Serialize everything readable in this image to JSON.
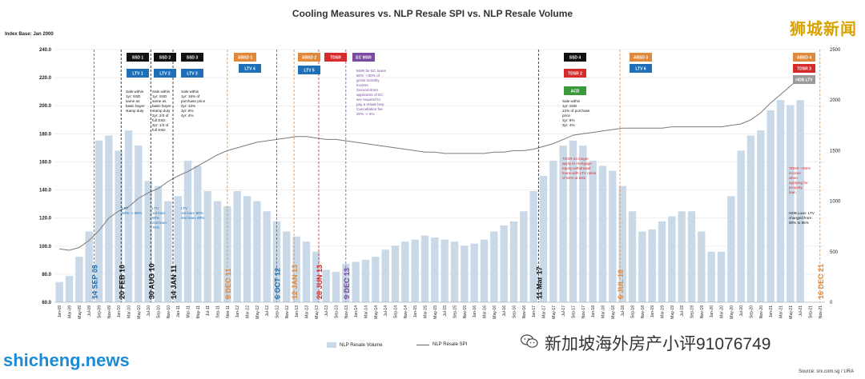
{
  "header": {
    "title": "Cooling Measures vs. NLP Resale SPI vs. NLP Resale Volume",
    "index_base": "Index Base: Jan 2000",
    "watermark_top_right": "狮城新闻",
    "watermark_bottom_left": "shicheng.news",
    "watermark_bottom_right": "新加坡海外房产小评91076749",
    "source": "Source: srx.com.sg / URA"
  },
  "legend": {
    "volume_label": "NLP Resale Volume",
    "spi_label": "NLP Resale SPI"
  },
  "colors": {
    "bar": "#c9d9e8",
    "line": "#7a7a7a",
    "black_box": "#111111",
    "blue_box": "#1f6fb8",
    "orange_box": "#e0893a",
    "red_box": "#d62b2b",
    "purple_box": "#7a4aa0",
    "green_box": "#3a9a3a",
    "gray_box": "#9a9a9a"
  },
  "chart_data": {
    "type": "bar+line",
    "title": "Cooling Measures vs. NLP Resale SPI vs. NLP Resale Volume",
    "left_axis": {
      "label": "",
      "ylim": [
        60,
        240
      ],
      "ticks": [
        "240.0",
        "220.0",
        "200.0",
        "180.0",
        "160.0",
        "140.0",
        "120.0",
        "100.0",
        "80.0",
        "60.0"
      ]
    },
    "right_axis": {
      "label": "",
      "ylim": [
        0,
        2500
      ],
      "ticks": [
        "2500",
        "2000",
        "1500",
        "1000",
        "500",
        "0"
      ]
    },
    "x_ticks": [
      "Jan-09",
      "Mar-09",
      "May-09",
      "Jul-09",
      "Sep-09",
      "Nov-09",
      "Jan-10",
      "Mar-10",
      "May-10",
      "Jul-10",
      "Sep-10",
      "Nov-10",
      "Jan-11",
      "Mar-11",
      "May-11",
      "Jul-11",
      "Sep-11",
      "Nov-11",
      "Jan-12",
      "Mar-12",
      "May-12",
      "Jul-12",
      "Sep-12",
      "Nov-12",
      "Jan-13",
      "Mar-13",
      "May-13",
      "Jul-13",
      "Sep-13",
      "Nov-13",
      "Jan-14",
      "Mar-14",
      "May-14",
      "Jul-14",
      "Sep-14",
      "Nov-14",
      "Jan-15",
      "Mar-15",
      "May-15",
      "Jul-15",
      "Sep-15",
      "Nov-15",
      "Jan-16",
      "Mar-16",
      "May-16",
      "Jul-16",
      "Sep-16",
      "Nov-16",
      "Jan-17",
      "Mar-17",
      "May-17",
      "Jul-17",
      "Sep-17",
      "Nov-17",
      "Jan-18",
      "Mar-18",
      "May-18",
      "Jul-18",
      "Sep-18",
      "Nov-18",
      "Jan-19",
      "Mar-19",
      "May-19",
      "Jul-19",
      "Sep-19",
      "Nov-19",
      "Jan-20",
      "Mar-20",
      "May-20",
      "Jul-20",
      "Sep-20",
      "Nov-20",
      "Jan-21",
      "Mar-21",
      "May-21",
      "Jul-21",
      "Sep-21",
      "Nov-21"
    ],
    "series": [
      {
        "name": "NLP Resale Volume",
        "axis": "right",
        "values": [
          200,
          260,
          450,
          700,
          1600,
          1650,
          1500,
          1700,
          1550,
          1200,
          1150,
          1000,
          1050,
          1400,
          1350,
          1100,
          1000,
          950,
          1100,
          1050,
          1000,
          900,
          800,
          700,
          650,
          600,
          500,
          320,
          300,
          380,
          400,
          420,
          450,
          520,
          560,
          600,
          620,
          660,
          640,
          620,
          600,
          560,
          580,
          620,
          700,
          760,
          800,
          900,
          1100,
          1250,
          1400,
          1550,
          1600,
          1550,
          1400,
          1350,
          1300,
          1150,
          900,
          700,
          720,
          800,
          850,
          900,
          900,
          700,
          500,
          500,
          1050,
          1500,
          1650,
          1700,
          1900,
          2000,
          1950,
          2000
        ]
      },
      {
        "name": "NLP Resale SPI",
        "axis": "left",
        "values": [
          98,
          97,
          99,
          104,
          111,
          120,
          125,
          128,
          134,
          138,
          141,
          146,
          150,
          153,
          157,
          161,
          165,
          168,
          170,
          172,
          174,
          175,
          176,
          177,
          178,
          178,
          177,
          176,
          176,
          175,
          174,
          173,
          172,
          171,
          170,
          169,
          168,
          167,
          167,
          166,
          166,
          166,
          166,
          166,
          167,
          167,
          168,
          168,
          169,
          171,
          173,
          176,
          179,
          180,
          181,
          182,
          183,
          184,
          184,
          184,
          184,
          184,
          185,
          185,
          185,
          185,
          185,
          185,
          186,
          187,
          190,
          195,
          202,
          208,
          214,
          220
        ]
      }
    ],
    "events": [
      {
        "date": "14 SEP 09",
        "color": "#1f6fb8"
      },
      {
        "date": "20 FEB 10",
        "color": "#111111"
      },
      {
        "date": "30 AUG 10",
        "color": "#111111"
      },
      {
        "date": "14 JAN 11",
        "color": "#111111"
      },
      {
        "date": "8 DEC 11",
        "color": "#e0893a"
      },
      {
        "date": "6 OCT 12",
        "color": "#1f6fb8"
      },
      {
        "date": "12 JAN 13",
        "color": "#e0893a"
      },
      {
        "date": "28 JUN 13",
        "color": "#d62b2b"
      },
      {
        "date": "9 DEC 13",
        "color": "#7a4aa0"
      },
      {
        "date": "11 Mar 17",
        "color": "#111111"
      },
      {
        "date": "6 JUL 18",
        "color": "#e0893a"
      },
      {
        "date": "16 DEC 21",
        "color": "#e0893a"
      }
    ],
    "grid": true
  },
  "boxes": [
    {
      "label": "SSD 1",
      "color": "#111111"
    },
    {
      "label": "LTV 1",
      "color": "#1f6fb8"
    },
    {
      "label": "SSD 2",
      "color": "#111111"
    },
    {
      "label": "LTV 2",
      "color": "#1f6fb8"
    },
    {
      "label": "SSD 3",
      "color": "#111111"
    },
    {
      "label": "LTV 3",
      "color": "#1f6fb8"
    },
    {
      "label": "ABSD 1",
      "color": "#e0893a"
    },
    {
      "label": "LTV 4",
      "color": "#1f6fb8"
    },
    {
      "label": "ABSD 2",
      "color": "#e0893a"
    },
    {
      "label": "LTV 5",
      "color": "#1f6fb8"
    },
    {
      "label": "TDSR",
      "color": "#d62b2b"
    },
    {
      "label": "EC MSR",
      "color": "#7a4aa0"
    },
    {
      "label": "SSD 4",
      "color": "#111111"
    },
    {
      "label": "TDSR 2",
      "color": "#d62b2b"
    },
    {
      "label": "ACD",
      "color": "#3a9a3a"
    },
    {
      "label": "ABSD 3",
      "color": "#e0893a"
    },
    {
      "label": "LTV 6",
      "color": "#1f6fb8"
    },
    {
      "label": "ABSD 4",
      "color": "#e0893a"
    },
    {
      "label": "TDSR 3",
      "color": "#d62b2b"
    },
    {
      "label": "HDB LTV",
      "color": "#9a9a9a"
    }
  ],
  "notes": [
    {
      "text": "Sale within\n1yr: SSD\nsame as\nbasic buyer\nstamp duty",
      "color": "#111111"
    },
    {
      "text": "Sale within\n1yr: SSD\nsame as\nbasic buyer\nstamp duty\n2yr: 2/3 of\nfull SSD\n3yr: 1/3 of\nfull SSD",
      "color": "#111111"
    },
    {
      "text": "Sale within\n1yr: 16% of\npurchase price\n2yr: 12%\n3yr: 8%\n4yr: 4%",
      "color": "#111111"
    },
    {
      "text": "LTV\n90% -> 80%",
      "color": "#1f6fb8"
    },
    {
      "text": "LTV\n1st loan:\n80%\n2nd loan:\n70%",
      "color": "#1f6fb8"
    },
    {
      "text": "LTV\n1st loan: 80%\n2nd loan: 60%",
      "color": "#1f6fb8"
    },
    {
      "text": "MSR for EC loans\n60% ->30% of\ngross monthly\nincome\nSecond-timer\napplicants of EC\nare required to\npay a resale levy\nCancellation fee\n20% -> 5%",
      "color": "#7a4aa0"
    },
    {
      "text": "Sale within\n1yr: SSD\n12% of purchase\nprice\n2yr: 8%\n3yr: 4%",
      "color": "#111111"
    },
    {
      "text": "TDSR no longer\napply to mortgage\nequity withdrawal\nloans with LTV ratios\nof 50% or less",
      "color": "#d62b2b"
    },
    {
      "text": "TDSR ->55%\nincome\nwhen\napplying for\nproperty\nloan",
      "color": "#d62b2b"
    },
    {
      "text": "HDB Loan: LTV\nchanged from\n90% to 85%",
      "color": "#111111"
    }
  ]
}
